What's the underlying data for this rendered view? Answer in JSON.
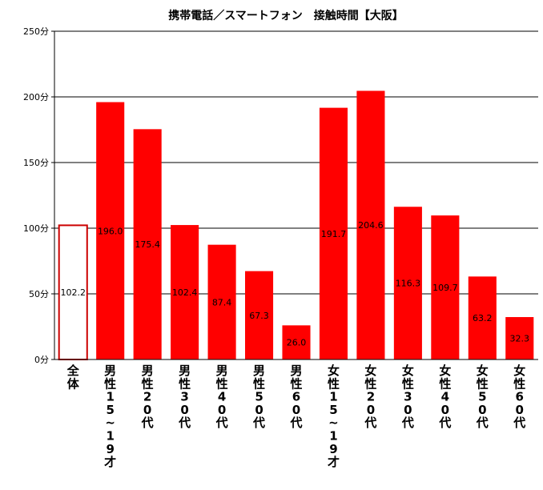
{
  "chart_data": {
    "type": "bar",
    "title": "携帯電話／スマートフォン　接触時間【大阪】",
    "xlabel": "",
    "ylabel": "",
    "ylim": [
      0,
      250
    ],
    "yticks": [
      0,
      50,
      100,
      150,
      200,
      250
    ],
    "ytick_labels": [
      "0分",
      "50分",
      "100分",
      "150分",
      "200分",
      "250分"
    ],
    "grid": true,
    "legend": "none",
    "categories": [
      "全体",
      "男性15~19才",
      "男性20代",
      "男性30代",
      "男性40代",
      "男性50代",
      "男性60代",
      "女性15~19才",
      "女性20代",
      "女性30代",
      "女性40代",
      "女性50代",
      "女性60代"
    ],
    "category_glyphs": [
      [
        "全",
        "体"
      ],
      [
        "男",
        "性",
        "1",
        "5",
        "~",
        "1",
        "9",
        "才"
      ],
      [
        "男",
        "性",
        "2",
        "0",
        "代"
      ],
      [
        "男",
        "性",
        "3",
        "0",
        "代"
      ],
      [
        "男",
        "性",
        "4",
        "0",
        "代"
      ],
      [
        "男",
        "性",
        "5",
        "0",
        "代"
      ],
      [
        "男",
        "性",
        "6",
        "0",
        "代"
      ],
      [
        "女",
        "性",
        "1",
        "5",
        "~",
        "1",
        "9",
        "才"
      ],
      [
        "女",
        "性",
        "2",
        "0",
        "代"
      ],
      [
        "女",
        "性",
        "3",
        "0",
        "代"
      ],
      [
        "女",
        "性",
        "4",
        "0",
        "代"
      ],
      [
        "女",
        "性",
        "5",
        "0",
        "代"
      ],
      [
        "女",
        "性",
        "6",
        "0",
        "代"
      ]
    ],
    "values": [
      102.2,
      196.0,
      175.4,
      102.4,
      87.4,
      67.3,
      26.0,
      191.7,
      204.6,
      116.3,
      109.7,
      63.2,
      32.3
    ],
    "value_labels": [
      "102.2",
      "196.0",
      "175.4",
      "102.4",
      "87.4",
      "67.3",
      "26.0",
      "191.7",
      "204.6",
      "116.3",
      "109.7",
      "63.2",
      "32.3"
    ],
    "colors": {
      "bar_fill": "#ff0000",
      "overall_fill": "#ffffff",
      "overall_stroke": "#cc0000",
      "grid": "#000000",
      "axis": "#000000"
    }
  }
}
